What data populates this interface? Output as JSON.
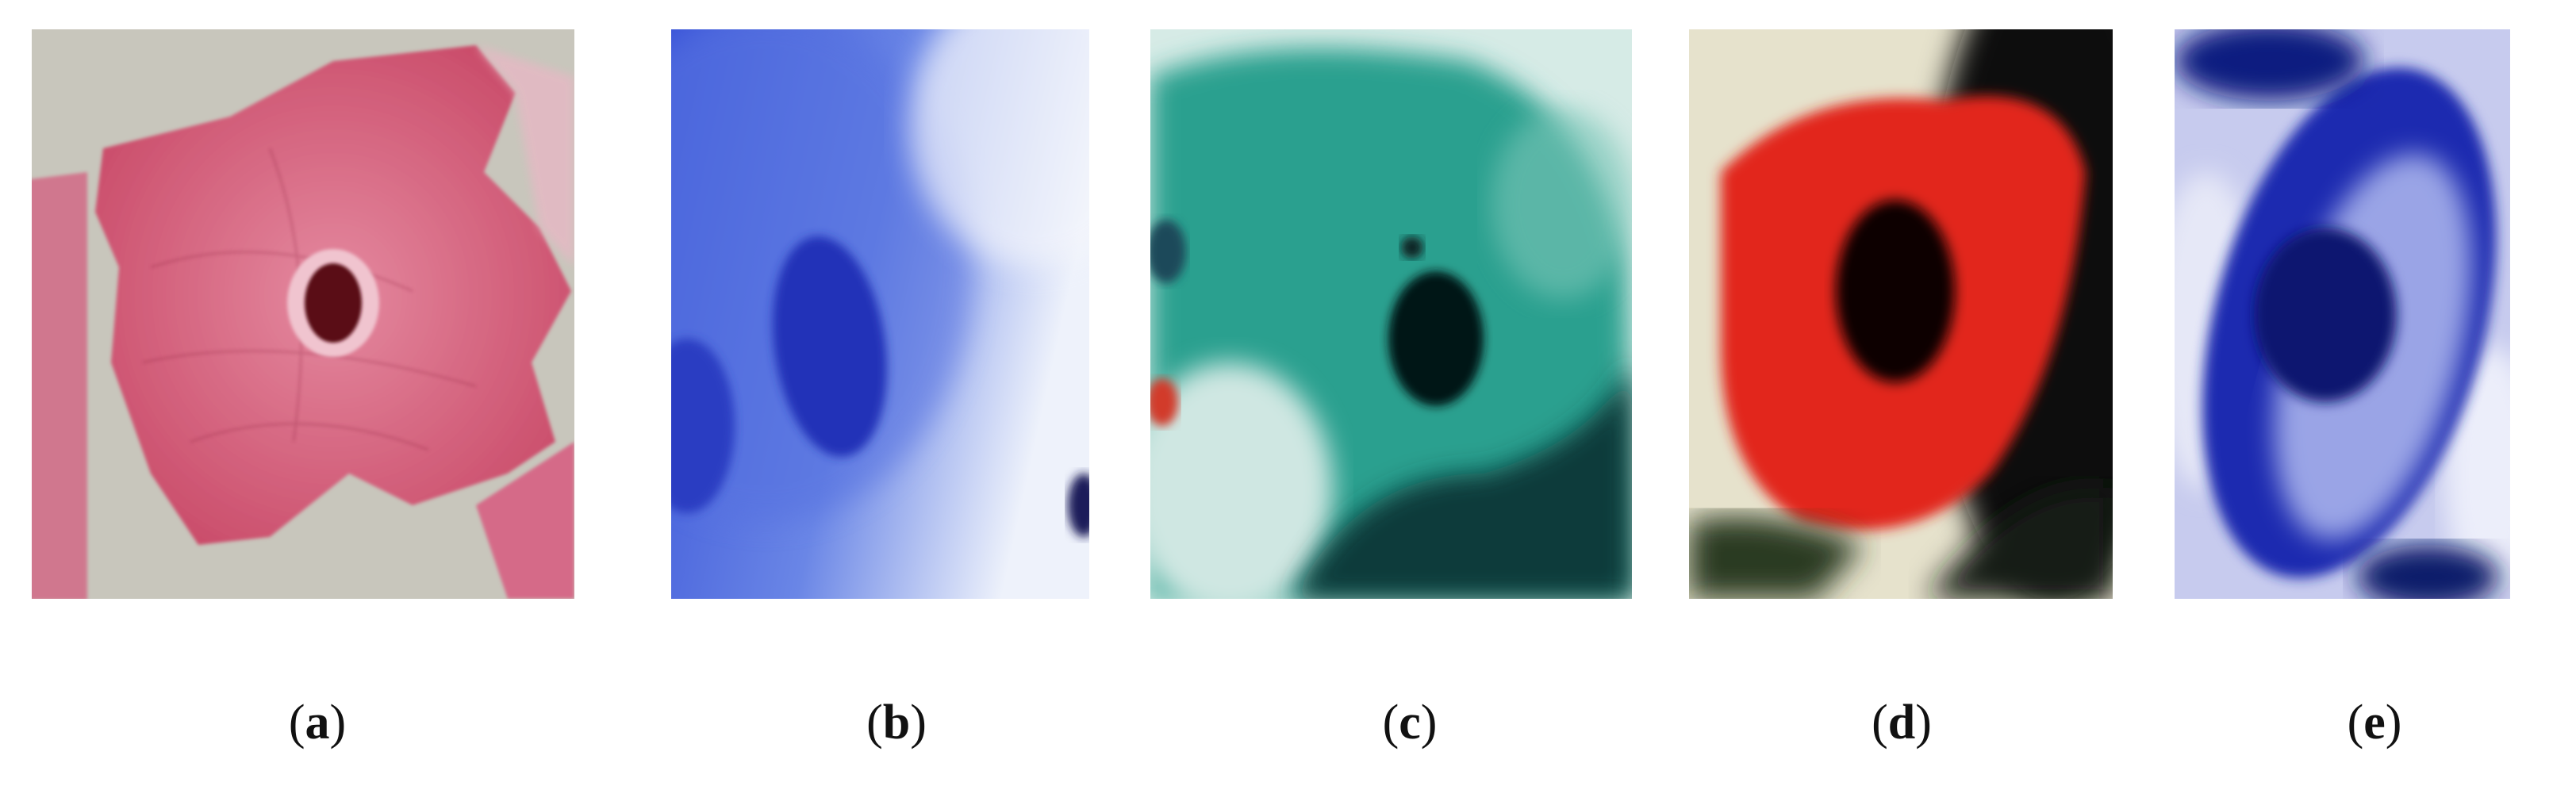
{
  "panels": [
    {
      "id": "a",
      "letter": "a",
      "stain": "pink",
      "accent": "#d95a7a",
      "background": "#c9c6bc"
    },
    {
      "id": "b",
      "letter": "b",
      "stain": "blue",
      "accent": "#4a63d6",
      "background": "#dfe6f6"
    },
    {
      "id": "c",
      "letter": "c",
      "stain": "teal",
      "accent": "#1e9a8c",
      "background": "#d9ece6"
    },
    {
      "id": "d",
      "letter": "d",
      "stain": "red",
      "accent": "#e22a1e",
      "background": "#e8e4cf"
    },
    {
      "id": "e",
      "letter": "e",
      "stain": "dark-blue",
      "accent": "#1d2fa8",
      "background": "#c9cdf0"
    }
  ],
  "captions": {
    "a": "a",
    "b": "b",
    "c": "c",
    "d": "d",
    "e": "e"
  }
}
